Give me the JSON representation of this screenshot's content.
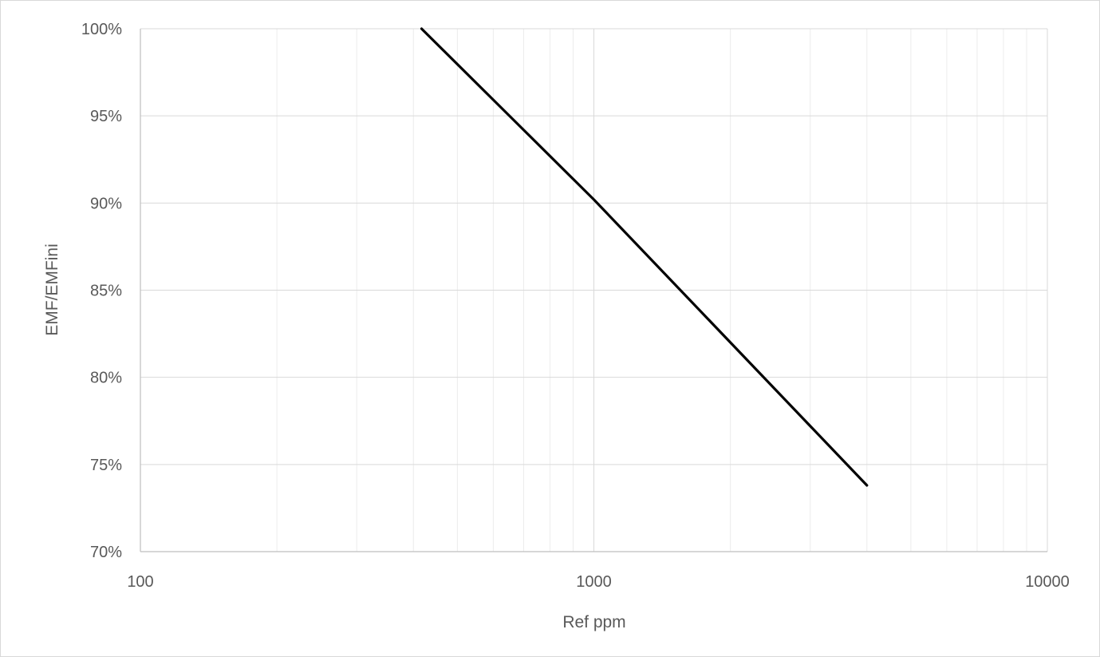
{
  "chart_data": {
    "type": "line",
    "xlabel": "Ref ppm",
    "ylabel": "EMF/EMFini",
    "x_scale": "log",
    "xlim": [
      100,
      10000
    ],
    "ylim": [
      70,
      100
    ],
    "x_ticks": [
      "100",
      "1000",
      "10000"
    ],
    "y_ticks": [
      "70%",
      "75%",
      "80%",
      "85%",
      "90%",
      "95%",
      "100%"
    ],
    "grid": true,
    "legend": "none",
    "series": [
      {
        "color": "#000000",
        "x": [
          417,
          1000,
          4000
        ],
        "y": [
          100,
          90.2,
          73.8
        ]
      }
    ]
  }
}
